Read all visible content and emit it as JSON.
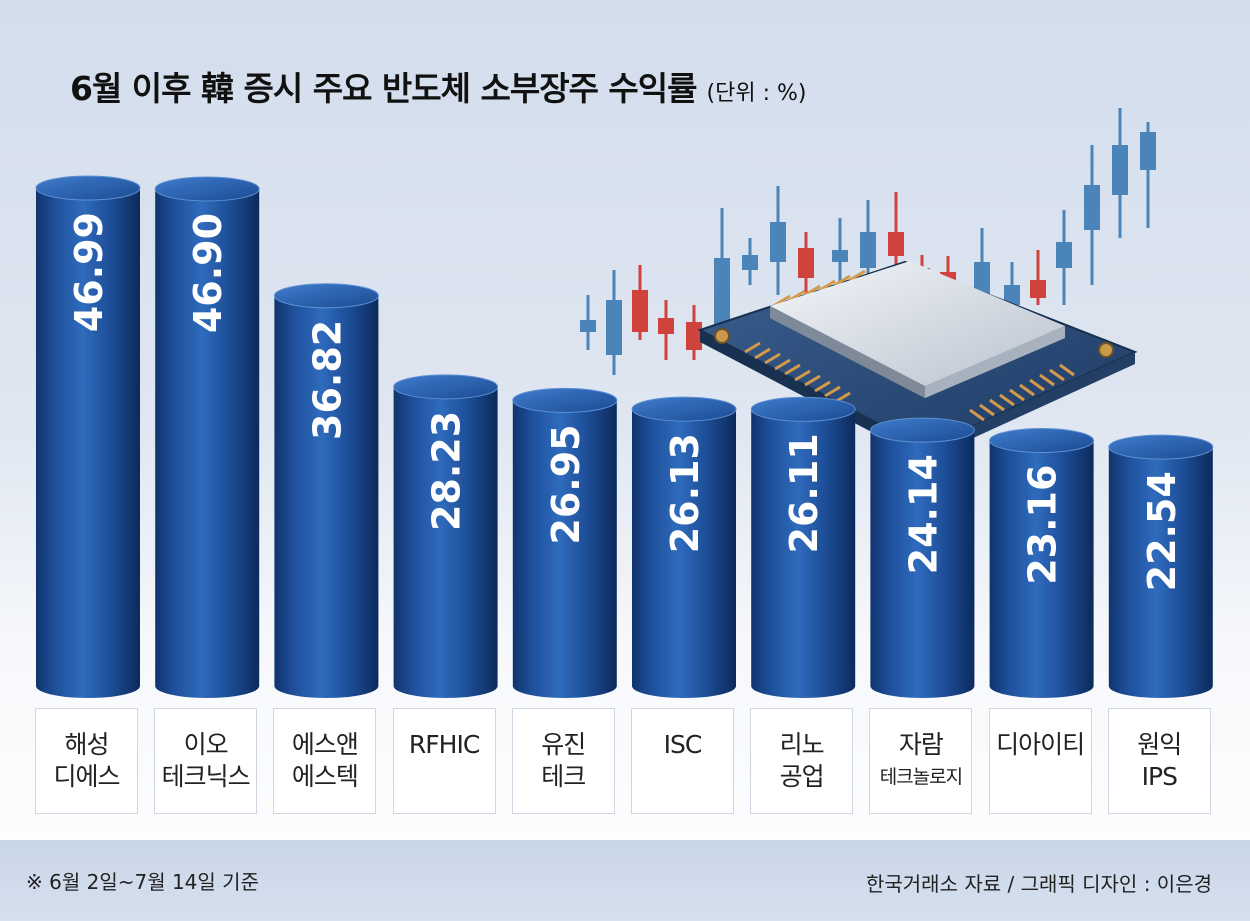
{
  "chart_data": {
    "type": "bar",
    "title": "6월 이후 韓 증시 주요 반도체 소부장주 수익률",
    "unit": "(단위 : %)",
    "categories": [
      [
        "해성",
        "디에스"
      ],
      [
        "이오",
        "테크닉스"
      ],
      [
        "에스앤",
        "에스텍"
      ],
      [
        "RFHIC",
        ""
      ],
      [
        "유진",
        "테크"
      ],
      [
        "ISC",
        ""
      ],
      [
        "리노",
        "공업"
      ],
      [
        "자람",
        "테크놀로지"
      ],
      [
        "디아이티",
        ""
      ],
      [
        "원익",
        "IPS"
      ]
    ],
    "values": [
      46.99,
      46.9,
      36.82,
      28.23,
      26.95,
      26.13,
      26.11,
      24.14,
      23.16,
      22.54
    ],
    "value_labels": [
      "46.99",
      "46.90",
      "36.82",
      "28.23",
      "26.95",
      "26.13",
      "26.11",
      "24.14",
      "23.16",
      "22.54"
    ],
    "bar_color": "#1e4f9a",
    "grid": false
  },
  "note": "※ 6월 2일~7월 14일 기준",
  "source": "한국거래소 자료 / 그래픽 디자인 : 이은경",
  "illustration": [
    "semiconductor-chip-icon",
    "candlestick-icon"
  ],
  "colors": {
    "rise": "#d0423c",
    "fall": "#4a84b8"
  }
}
